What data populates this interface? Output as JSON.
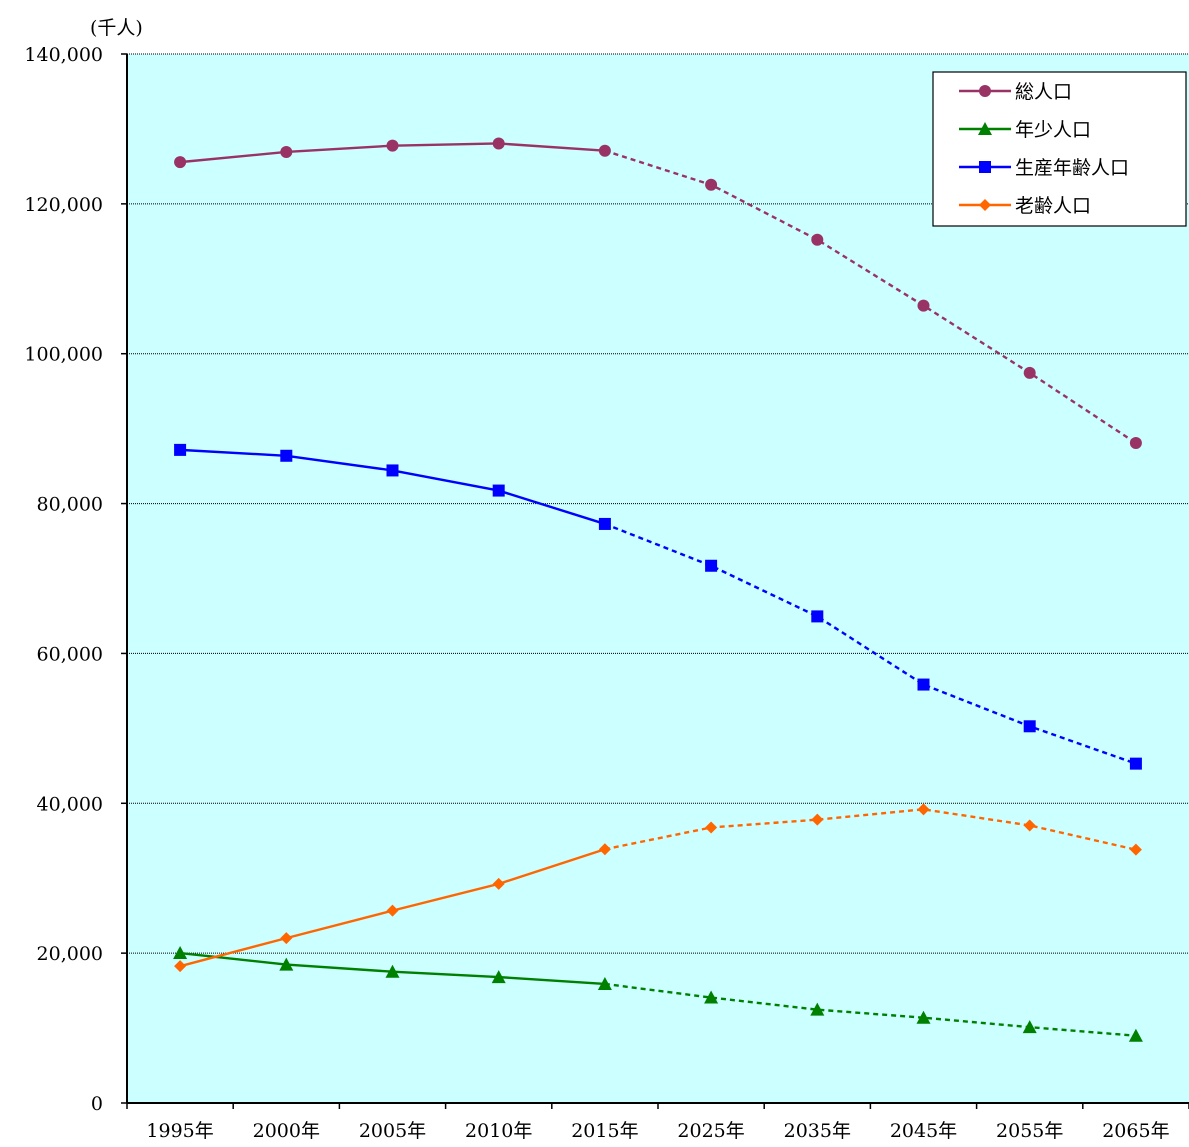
{
  "chart_data": {
    "type": "line",
    "unit_label": "(千人)",
    "categories": [
      "1995年",
      "2000年",
      "2005年",
      "2010年",
      "2015年",
      "2025年",
      "2035年",
      "2045年",
      "2055年",
      "2065年"
    ],
    "ylim": [
      0,
      140000
    ],
    "yticks": [
      0,
      20000,
      40000,
      60000,
      80000,
      100000,
      120000,
      140000
    ],
    "ytick_labels": [
      "0",
      "20,000",
      "40,000",
      "60,000",
      "80,000",
      "100,000",
      "120,000",
      "140,000"
    ],
    "grid": true,
    "plot_background": "#ccffff",
    "legend_position": "top-right",
    "projection_starts_at": "2015年",
    "series": [
      {
        "name": "総人口",
        "color": "#993366",
        "marker": "circle",
        "values": [
          125570,
          126926,
          127768,
          128057,
          127095,
          122544,
          115216,
          106421,
          97441,
          88077
        ]
      },
      {
        "name": "年少人口",
        "color": "#008000",
        "marker": "triangle",
        "values": [
          20014,
          18472,
          17521,
          16803,
          15887,
          14073,
          12457,
          11384,
          10123,
          8975
        ]
      },
      {
        "name": "生産年齢人口",
        "color": "#0000ff",
        "marker": "square",
        "values": [
          87165,
          86380,
          84422,
          81735,
          77282,
          71701,
          64942,
          55845,
          50276,
          45291
        ]
      },
      {
        "name": "老齢人口",
        "color": "#ff6600",
        "marker": "diamond",
        "values": [
          18261,
          22005,
          25672,
          29246,
          33868,
          36771,
          37817,
          39192,
          37042,
          33810
        ]
      }
    ]
  }
}
